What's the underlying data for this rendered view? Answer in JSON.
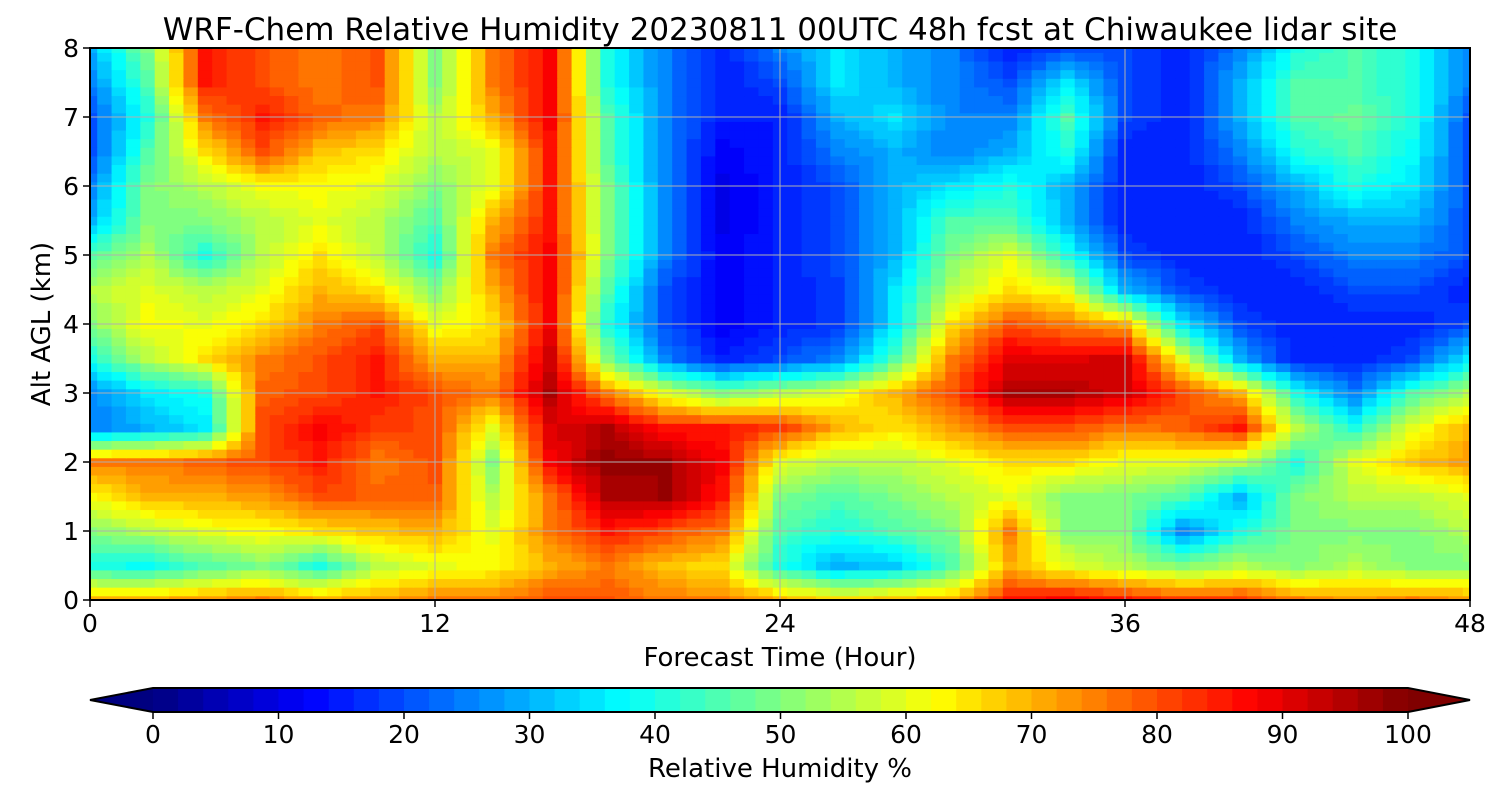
{
  "chart_data": {
    "type": "heatmap",
    "title": "WRF-Chem Relative Humidity 20230811 00UTC 48h fcst at Chiwaukee lidar site",
    "xlabel": "Forecast Time (Hour)",
    "ylabel": "Alt AGL (km)",
    "xlim": [
      0,
      48
    ],
    "ylim": [
      0,
      8
    ],
    "xticks": [
      "0",
      "12",
      "24",
      "36",
      "48"
    ],
    "yticks": [
      "0",
      "1",
      "2",
      "3",
      "4",
      "5",
      "6",
      "7",
      "8"
    ],
    "grid": true,
    "x": [
      0,
      2,
      4,
      6,
      8,
      10,
      12,
      14,
      16,
      18,
      20,
      22,
      24,
      26,
      28,
      30,
      32,
      34,
      36,
      38,
      40,
      42,
      44,
      46,
      48
    ],
    "y": [
      0,
      0.5,
      1,
      1.5,
      2,
      2.5,
      3,
      3.5,
      4,
      4.5,
      5,
      5.5,
      6,
      6.5,
      7,
      7.5,
      8
    ],
    "z": [
      [
        70,
        70,
        72,
        75,
        70,
        72,
        75,
        75,
        80,
        80,
        75,
        75,
        70,
        65,
        68,
        70,
        85,
        88,
        85,
        82,
        82,
        75,
        72,
        75,
        72
      ],
      [
        40,
        38,
        45,
        50,
        40,
        55,
        60,
        62,
        70,
        75,
        68,
        65,
        40,
        30,
        32,
        45,
        70,
        60,
        55,
        50,
        55,
        50,
        55,
        50,
        50
      ],
      [
        50,
        55,
        60,
        62,
        65,
        68,
        70,
        60,
        75,
        85,
        80,
        75,
        45,
        40,
        45,
        50,
        75,
        50,
        50,
        25,
        40,
        50,
        50,
        50,
        55
      ],
      [
        62,
        70,
        70,
        72,
        80,
        78,
        78,
        55,
        75,
        95,
        97,
        85,
        50,
        45,
        50,
        55,
        60,
        50,
        50,
        45,
        30,
        50,
        55,
        55,
        60
      ],
      [
        75,
        75,
        78,
        80,
        85,
        75,
        80,
        50,
        88,
        98,
        97,
        88,
        60,
        55,
        55,
        60,
        65,
        65,
        60,
        60,
        55,
        40,
        60,
        68,
        72
      ],
      [
        25,
        30,
        35,
        80,
        88,
        82,
        80,
        60,
        90,
        95,
        85,
        85,
        82,
        70,
        65,
        72,
        80,
        80,
        75,
        78,
        85,
        55,
        40,
        60,
        70
      ],
      [
        25,
        35,
        40,
        78,
        80,
        85,
        80,
        75,
        95,
        75,
        60,
        50,
        55,
        60,
        70,
        80,
        95,
        95,
        92,
        80,
        70,
        40,
        25,
        45,
        55
      ],
      [
        40,
        55,
        65,
        75,
        80,
        85,
        70,
        70,
        92,
        50,
        25,
        15,
        20,
        25,
        45,
        75,
        90,
        90,
        92,
        60,
        30,
        15,
        15,
        20,
        35
      ],
      [
        50,
        62,
        60,
        65,
        75,
        80,
        60,
        65,
        88,
        40,
        20,
        12,
        15,
        18,
        35,
        65,
        80,
        75,
        70,
        35,
        20,
        15,
        15,
        15,
        20
      ],
      [
        55,
        60,
        55,
        60,
        70,
        65,
        50,
        70,
        88,
        45,
        20,
        12,
        15,
        18,
        35,
        55,
        65,
        60,
        30,
        20,
        15,
        15,
        20,
        20,
        15
      ],
      [
        45,
        55,
        40,
        55,
        65,
        55,
        40,
        75,
        88,
        50,
        25,
        12,
        15,
        20,
        30,
        50,
        60,
        40,
        20,
        15,
        15,
        20,
        25,
        25,
        20
      ],
      [
        30,
        50,
        50,
        55,
        60,
        55,
        45,
        70,
        85,
        50,
        25,
        10,
        15,
        20,
        30,
        45,
        45,
        30,
        15,
        15,
        15,
        25,
        30,
        30,
        20
      ],
      [
        25,
        50,
        55,
        62,
        62,
        60,
        50,
        60,
        85,
        50,
        25,
        10,
        15,
        20,
        30,
        35,
        40,
        30,
        15,
        15,
        20,
        30,
        40,
        35,
        20
      ],
      [
        20,
        45,
        65,
        80,
        68,
        65,
        55,
        60,
        85,
        45,
        25,
        12,
        15,
        25,
        30,
        25,
        30,
        40,
        15,
        15,
        25,
        40,
        45,
        38,
        20
      ],
      [
        20,
        40,
        75,
        85,
        78,
        75,
        55,
        70,
        88,
        45,
        25,
        15,
        15,
        30,
        35,
        25,
        25,
        45,
        20,
        15,
        30,
        45,
        48,
        40,
        20
      ],
      [
        25,
        45,
        85,
        80,
        75,
        80,
        50,
        75,
        88,
        40,
        25,
        15,
        20,
        35,
        30,
        25,
        20,
        35,
        20,
        15,
        30,
        45,
        45,
        40,
        25
      ],
      [
        30,
        50,
        85,
        80,
        75,
        80,
        50,
        75,
        88,
        40,
        25,
        15,
        25,
        35,
        30,
        25,
        15,
        20,
        20,
        15,
        25,
        40,
        45,
        40,
        25
      ]
    ],
    "colorbar": {
      "label": "Relative Humidity %",
      "range": [
        0,
        100
      ],
      "ticks": [
        "0",
        "10",
        "20",
        "30",
        "40",
        "50",
        "60",
        "70",
        "80",
        "90",
        "100"
      ],
      "colormap": "jet",
      "extend": "both"
    }
  }
}
